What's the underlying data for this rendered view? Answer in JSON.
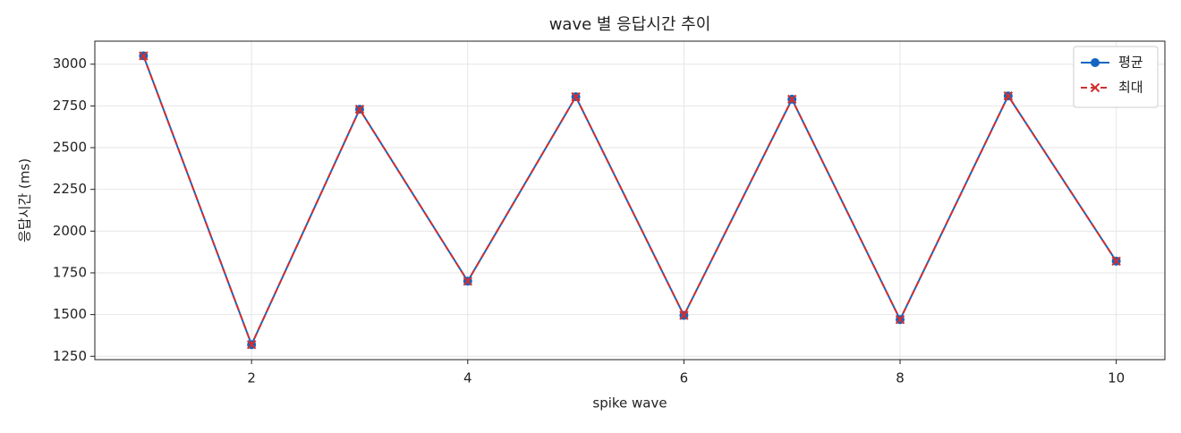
{
  "chart_data": {
    "type": "line",
    "title": "wave 별 응답시간 추이",
    "x_label": "spike wave",
    "y_label": "응답시간 (ms)",
    "x": [
      1,
      2,
      3,
      4,
      5,
      6,
      7,
      8,
      9,
      10
    ],
    "series": [
      {
        "name": "평균",
        "color": "#1565c0",
        "marker": "o",
        "linestyle": "solid",
        "values": [
          3050,
          1320,
          2730,
          1700,
          2805,
          1495,
          2790,
          1470,
          2810,
          1820
        ]
      },
      {
        "name": "최대",
        "color": "#d32f2f",
        "marker": "x",
        "linestyle": "dashed",
        "values": [
          3050,
          1320,
          2730,
          1700,
          2805,
          1495,
          2790,
          1470,
          2810,
          1820
        ]
      }
    ],
    "xlim": [
      0.55,
      10.45
    ],
    "ylim": [
      1230,
      3138
    ],
    "xticks": [
      2,
      4,
      6,
      8,
      10
    ],
    "yticks": [
      1250,
      1500,
      1750,
      2000,
      2250,
      2500,
      2750,
      3000
    ],
    "grid": true,
    "legend": "upper right"
  }
}
